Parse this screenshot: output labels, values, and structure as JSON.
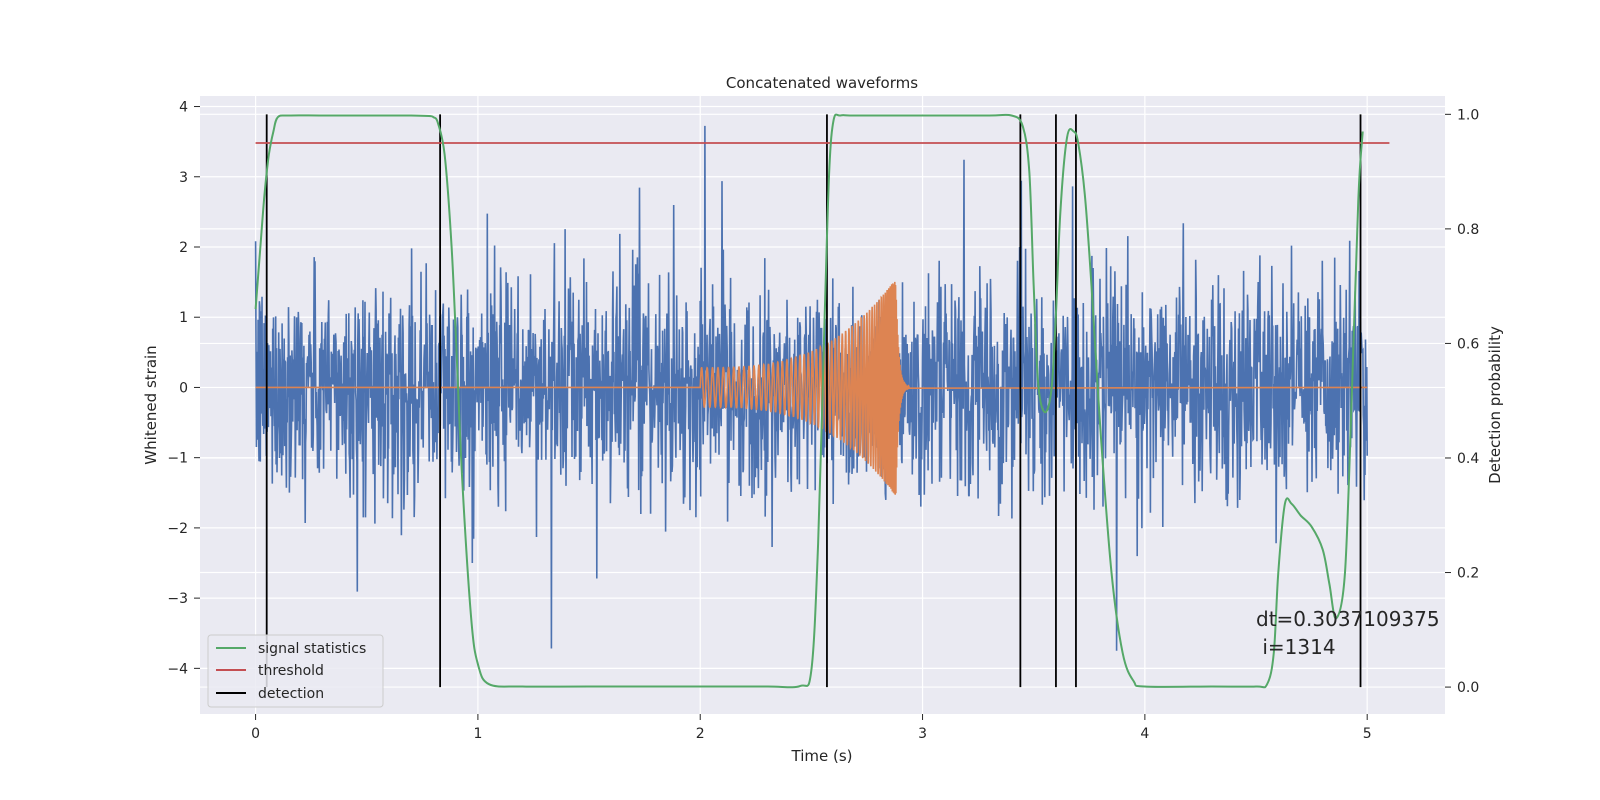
{
  "chart_data": {
    "type": "line",
    "title": "Concatenated waveforms",
    "xlabel": "Time (s)",
    "ylabel": "Whitened strain",
    "ylabel_right": "Detection probability",
    "xlim": [
      -0.25,
      5.35
    ],
    "ylim": [
      -4.65,
      4.15
    ],
    "ylim_right": [
      -0.047,
      1.032
    ],
    "x_ticks": [
      0,
      1,
      2,
      3,
      4,
      5
    ],
    "y_ticks": [
      -4,
      -3,
      -2,
      -1,
      0,
      1,
      2,
      3,
      4
    ],
    "y_ticks_right": [
      0.0,
      0.2,
      0.4,
      0.6,
      0.8,
      1.0
    ],
    "y_tick_labels_right": [
      "0.0",
      "0.2",
      "0.4",
      "0.6",
      "0.8",
      "1.0"
    ],
    "grid": true,
    "background": "#eaeaf2",
    "series": [
      {
        "name": "",
        "role": "whitened-strain-noise",
        "axis": "left",
        "color": "#4c72b0",
        "x_range": [
          0,
          5
        ],
        "typical_amplitude": 1.3,
        "peak_amplitude": 3.75
      },
      {
        "name": "",
        "role": "injected-chirp",
        "axis": "left",
        "color": "#dd8452",
        "x_range": [
          0,
          5
        ],
        "chirp_start": 2.0,
        "merger_time": 2.88,
        "peak_amplitude": 1.55
      },
      {
        "name": "signal statistics",
        "axis": "right",
        "color": "#55a868",
        "x": [
          0.0,
          0.02,
          0.04,
          0.06,
          0.08,
          0.1,
          0.15,
          0.3,
          0.5,
          0.7,
          0.78,
          0.8,
          0.82,
          0.85,
          0.88,
          0.9,
          0.93,
          0.97,
          1.0,
          1.05,
          1.2,
          1.5,
          2.0,
          2.3,
          2.45,
          2.5,
          2.53,
          2.56,
          2.58,
          2.6,
          2.63,
          2.7,
          3.0,
          3.3,
          3.4,
          3.45,
          3.48,
          3.5,
          3.52,
          3.55,
          3.58,
          3.6,
          3.62,
          3.65,
          3.68,
          3.7,
          3.73,
          3.76,
          3.8,
          3.85,
          3.9,
          3.95,
          4.0,
          4.3,
          4.5,
          4.55,
          4.58,
          4.6,
          4.63,
          4.66,
          4.7,
          4.75,
          4.8,
          4.83,
          4.86,
          4.9,
          4.93,
          4.96,
          4.98
        ],
        "values": [
          0.66,
          0.76,
          0.86,
          0.93,
          0.97,
          0.995,
          0.998,
          0.998,
          0.998,
          0.998,
          0.997,
          0.995,
          0.985,
          0.93,
          0.78,
          0.62,
          0.36,
          0.12,
          0.04,
          0.005,
          0.001,
          0.001,
          0.001,
          0.001,
          0.002,
          0.03,
          0.25,
          0.65,
          0.9,
          0.99,
          0.998,
          0.998,
          0.998,
          0.998,
          0.998,
          0.98,
          0.9,
          0.7,
          0.53,
          0.48,
          0.52,
          0.65,
          0.83,
          0.96,
          0.97,
          0.95,
          0.86,
          0.7,
          0.45,
          0.2,
          0.06,
          0.01,
          0.001,
          0.001,
          0.001,
          0.005,
          0.06,
          0.2,
          0.32,
          0.32,
          0.3,
          0.28,
          0.24,
          0.18,
          0.12,
          0.2,
          0.5,
          0.85,
          0.97
        ]
      },
      {
        "name": "threshold",
        "axis": "right",
        "color": "#c44e52",
        "x": [
          0.0,
          5.1
        ],
        "values": [
          0.95,
          0.95
        ]
      }
    ],
    "detection": {
      "name": "detection",
      "color": "#000000",
      "x": [
        0.05,
        0.83,
        2.57,
        3.44,
        3.6,
        3.69,
        4.97
      ]
    },
    "annotation": {
      "dt_text": "dt=0.3037109375",
      "i_text": " i=1314",
      "x": 4.5,
      "y": -3.4
    },
    "legend": {
      "placement": "lower-left",
      "entries": [
        "signal statistics",
        "threshold",
        "detection"
      ]
    }
  }
}
